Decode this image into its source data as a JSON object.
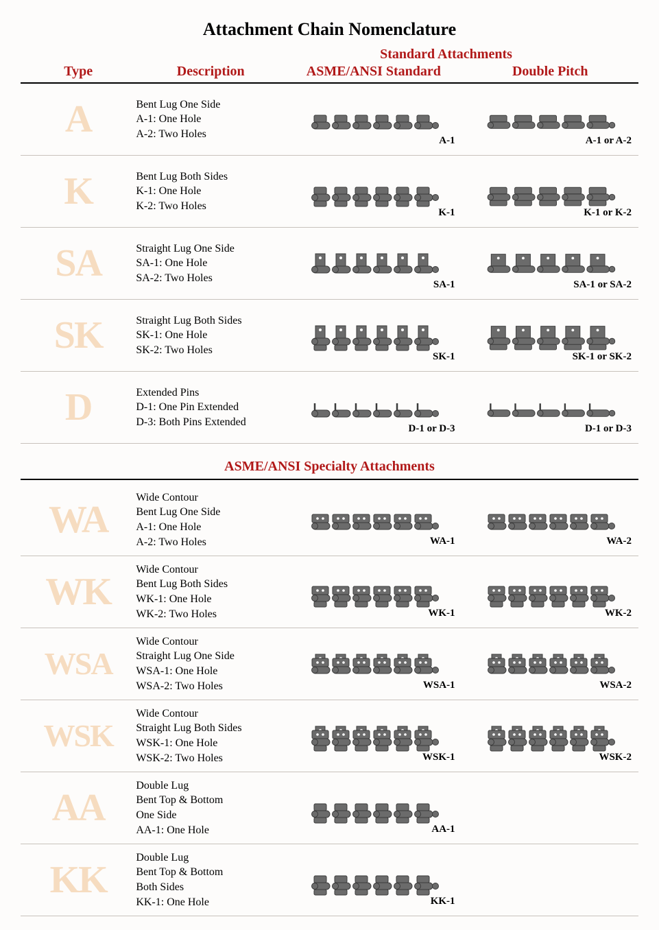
{
  "title": "Attachment Chain Nomenclature",
  "superHeader": "Standard Attachments",
  "headers": {
    "type": "Type",
    "description": "Description",
    "col1": "ASME/ANSI Standard",
    "col2": "Double Pitch"
  },
  "section2Title": "ASME/ANSI Specialty Attachments",
  "colors": {
    "headerText": "#b11919",
    "typeText": "#f6dcc0",
    "ruleColor": "#000000",
    "rowBorder": "#c8c2bc",
    "chainFill": "#6b6b6b",
    "chainStroke": "#3b3b3b",
    "background": "#fdfcfb"
  },
  "section1": [
    {
      "type": "A",
      "desc": [
        "Bent Lug One Side",
        "A-1: One Hole",
        "A-2: Two Holes"
      ],
      "cap1": "A-1",
      "cap2": "A-1 or A-2",
      "style1": "bent-one",
      "style2": "dp-bent-one"
    },
    {
      "type": "K",
      "desc": [
        "Bent Lug Both Sides",
        "K-1: One Hole",
        "K-2: Two Holes"
      ],
      "cap1": "K-1",
      "cap2": "K-1 or K-2",
      "style1": "bent-both",
      "style2": "dp-bent-both"
    },
    {
      "type": "SA",
      "desc": [
        "Straight Lug One Side",
        "SA-1: One Hole",
        "SA-2: Two Holes"
      ],
      "cap1": "SA-1",
      "cap2": "SA-1 or SA-2",
      "style1": "straight-one",
      "style2": "dp-straight-one"
    },
    {
      "type": "SK",
      "desc": [
        "Straight Lug Both Sides",
        "SK-1: One Hole",
        "SK-2: Two Holes"
      ],
      "cap1": "SK-1",
      "cap2": "SK-1 or SK-2",
      "style1": "straight-both",
      "style2": "dp-straight-both"
    },
    {
      "type": "D",
      "desc": [
        "Extended Pins",
        "D-1: One Pin Extended",
        "D-3: Both Pins Extended"
      ],
      "cap1": "D-1 or D-3",
      "cap2": "D-1 or D-3",
      "style1": "pins",
      "style2": "dp-pins"
    }
  ],
  "section2": [
    {
      "type": "WA",
      "desc": [
        "Wide Contour",
        "Bent Lug One Side",
        "A-1: One Hole",
        "A-2: Two Holes"
      ],
      "cap1": "WA-1",
      "cap2": "WA-2",
      "style1": "wide-bent-one",
      "style2": "wide-bent-one"
    },
    {
      "type": "WK",
      "desc": [
        "Wide Contour",
        "Bent Lug Both Sides",
        "WK-1: One Hole",
        "WK-2: Two Holes"
      ],
      "cap1": "WK-1",
      "cap2": "WK-2",
      "style1": "wide-bent-both",
      "style2": "wide-bent-both"
    },
    {
      "type": "WSA",
      "desc": [
        "Wide Contour",
        "Straight Lug One Side",
        "WSA-1: One Hole",
        "WSA-2: Two Holes"
      ],
      "cap1": "WSA-1",
      "cap2": "WSA-2",
      "style1": "wide-straight-one",
      "style2": "wide-straight-one"
    },
    {
      "type": "WSK",
      "desc": [
        "Wide Contour",
        "Straight Lug Both Sides",
        "WSK-1: One Hole",
        "WSK-2: Two Holes"
      ],
      "cap1": "WSK-1",
      "cap2": "WSK-2",
      "style1": "wide-straight-both",
      "style2": "wide-straight-both"
    },
    {
      "type": "AA",
      "desc": [
        "Double Lug",
        "Bent Top & Bottom",
        "One Side",
        "AA-1: One Hole"
      ],
      "cap1": "AA-1",
      "cap2": "",
      "style1": "double-one",
      "style2": ""
    },
    {
      "type": "KK",
      "desc": [
        "Double Lug",
        "Bent Top & Bottom",
        "Both Sides",
        "KK-1: One Hole"
      ],
      "cap1": "KK-1",
      "cap2": "",
      "style1": "double-both",
      "style2": ""
    }
  ]
}
